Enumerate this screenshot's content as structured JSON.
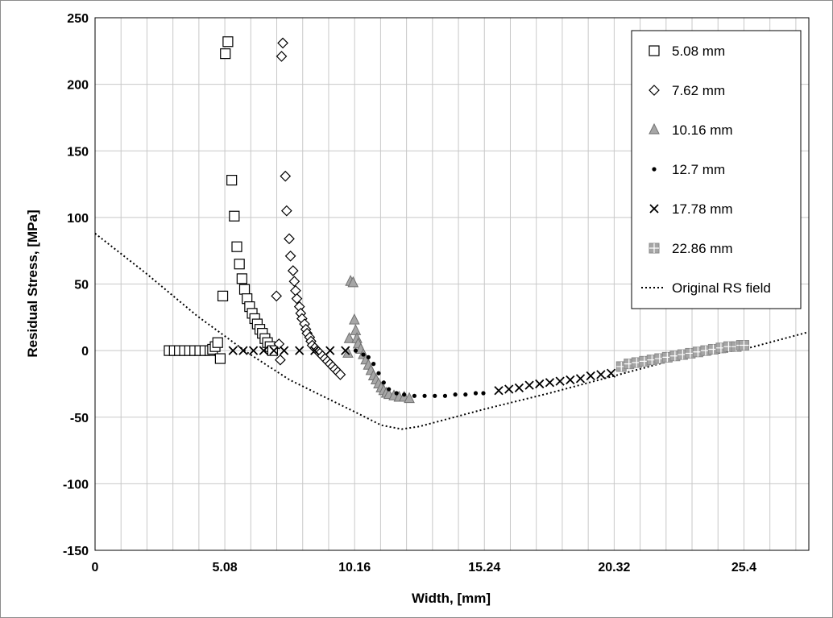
{
  "chart_data": {
    "type": "scatter",
    "xlabel": "Width, [mm]",
    "ylabel": "Residual Stress, [MPa]",
    "xlim": [
      0,
      27.94
    ],
    "ylim": [
      -150,
      250
    ],
    "x_ticks": [
      0,
      5.08,
      10.16,
      15.24,
      20.32,
      25.4
    ],
    "x_tick_labels": [
      "0",
      "5.08",
      "10.16",
      "15.24",
      "20.32",
      "25.4"
    ],
    "y_ticks": [
      250,
      200,
      150,
      100,
      50,
      0,
      -50,
      -100,
      -150
    ],
    "y_tick_labels": [
      "250",
      "200",
      "150",
      "100",
      "50",
      "0",
      "-50",
      "-100",
      "-150"
    ],
    "grid": true,
    "legend_position": "top-right",
    "series": [
      {
        "name": "5.08 mm",
        "marker": "square-open",
        "points": [
          [
            2.9,
            0
          ],
          [
            3.1,
            0
          ],
          [
            3.3,
            0
          ],
          [
            3.5,
            0
          ],
          [
            3.7,
            0
          ],
          [
            3.9,
            0
          ],
          [
            4.1,
            0
          ],
          [
            4.3,
            0
          ],
          [
            4.5,
            0
          ],
          [
            4.6,
            1
          ],
          [
            4.7,
            3
          ],
          [
            4.8,
            6
          ],
          [
            4.9,
            -6
          ],
          [
            5.0,
            41
          ],
          [
            5.1,
            223
          ],
          [
            5.2,
            232
          ],
          [
            5.35,
            128
          ],
          [
            5.45,
            101
          ],
          [
            5.55,
            78
          ],
          [
            5.65,
            65
          ],
          [
            5.75,
            54
          ],
          [
            5.85,
            46
          ],
          [
            5.95,
            39
          ],
          [
            6.05,
            33
          ],
          [
            6.15,
            28
          ],
          [
            6.25,
            24
          ],
          [
            6.35,
            20
          ],
          [
            6.45,
            16
          ],
          [
            6.55,
            13
          ],
          [
            6.65,
            9
          ],
          [
            6.75,
            6
          ],
          [
            6.85,
            3
          ],
          [
            6.95,
            0
          ]
        ]
      },
      {
        "name": "7.62 mm",
        "marker": "diamond-open",
        "points": [
          [
            7.1,
            41
          ],
          [
            7.2,
            5
          ],
          [
            7.25,
            -7
          ],
          [
            7.3,
            221
          ],
          [
            7.35,
            231
          ],
          [
            7.45,
            131
          ],
          [
            7.5,
            105
          ],
          [
            7.6,
            84
          ],
          [
            7.65,
            71
          ],
          [
            7.75,
            60
          ],
          [
            7.8,
            52
          ],
          [
            7.85,
            45
          ],
          [
            7.9,
            39
          ],
          [
            8.0,
            33
          ],
          [
            8.05,
            28
          ],
          [
            8.1,
            24
          ],
          [
            8.2,
            20
          ],
          [
            8.25,
            16
          ],
          [
            8.3,
            13
          ],
          [
            8.4,
            10
          ],
          [
            8.45,
            7
          ],
          [
            8.5,
            4
          ],
          [
            8.6,
            2
          ],
          [
            8.7,
            0
          ],
          [
            8.8,
            -2
          ],
          [
            8.9,
            -4
          ],
          [
            9.0,
            -6
          ],
          [
            9.1,
            -8
          ],
          [
            9.2,
            -10
          ],
          [
            9.3,
            -12
          ],
          [
            9.4,
            -14
          ],
          [
            9.5,
            -16
          ],
          [
            9.6,
            -18
          ]
        ]
      },
      {
        "name": "10.16 mm",
        "marker": "triangle-gray",
        "points": [
          [
            9.9,
            -2
          ],
          [
            9.95,
            9
          ],
          [
            10.0,
            52
          ],
          [
            10.1,
            51
          ],
          [
            10.15,
            23
          ],
          [
            10.2,
            15
          ],
          [
            10.25,
            9
          ],
          [
            10.3,
            5
          ],
          [
            10.4,
            1
          ],
          [
            10.5,
            -3
          ],
          [
            10.6,
            -7
          ],
          [
            10.7,
            -11
          ],
          [
            10.8,
            -15
          ],
          [
            10.9,
            -19
          ],
          [
            11.0,
            -22
          ],
          [
            11.1,
            -25
          ],
          [
            11.2,
            -28
          ],
          [
            11.3,
            -30
          ],
          [
            11.4,
            -32
          ],
          [
            11.5,
            -33
          ],
          [
            11.7,
            -34
          ],
          [
            11.9,
            -35
          ],
          [
            12.1,
            -35
          ],
          [
            12.3,
            -36
          ]
        ]
      },
      {
        "name": "12.7 mm",
        "marker": "dot",
        "points": [
          [
            10.2,
            0
          ],
          [
            10.5,
            -3
          ],
          [
            10.7,
            -5
          ],
          [
            10.9,
            -10
          ],
          [
            11.1,
            -17
          ],
          [
            11.3,
            -24
          ],
          [
            11.5,
            -29
          ],
          [
            11.8,
            -32
          ],
          [
            12.1,
            -33
          ],
          [
            12.5,
            -34
          ],
          [
            12.9,
            -34
          ],
          [
            13.3,
            -34
          ],
          [
            13.7,
            -34
          ],
          [
            14.1,
            -33
          ],
          [
            14.5,
            -33
          ],
          [
            14.9,
            -32
          ],
          [
            15.2,
            -32
          ]
        ]
      },
      {
        "name": "17.78 mm",
        "marker": "x",
        "points": [
          [
            5.4,
            0
          ],
          [
            5.8,
            0
          ],
          [
            6.2,
            0
          ],
          [
            6.6,
            0
          ],
          [
            7.0,
            0
          ],
          [
            7.4,
            0
          ],
          [
            8.0,
            0
          ],
          [
            8.6,
            0
          ],
          [
            9.2,
            0
          ],
          [
            9.8,
            0
          ],
          [
            15.8,
            -30
          ],
          [
            16.2,
            -29
          ],
          [
            16.6,
            -28
          ],
          [
            17.0,
            -26
          ],
          [
            17.4,
            -25
          ],
          [
            17.8,
            -24
          ],
          [
            18.2,
            -23
          ],
          [
            18.6,
            -22
          ],
          [
            19.0,
            -21
          ],
          [
            19.4,
            -19
          ],
          [
            19.8,
            -18
          ],
          [
            20.2,
            -17
          ]
        ]
      },
      {
        "name": "22.86 mm",
        "marker": "square-gray",
        "points": [
          [
            20.6,
            -12
          ],
          [
            20.9,
            -10
          ],
          [
            21.2,
            -9
          ],
          [
            21.5,
            -8
          ],
          [
            21.8,
            -7
          ],
          [
            22.1,
            -6
          ],
          [
            22.4,
            -5
          ],
          [
            22.7,
            -4
          ],
          [
            23.0,
            -3
          ],
          [
            23.3,
            -2
          ],
          [
            23.6,
            -1
          ],
          [
            23.9,
            0
          ],
          [
            24.2,
            1
          ],
          [
            24.5,
            2
          ],
          [
            24.8,
            3
          ],
          [
            25.1,
            3
          ],
          [
            25.3,
            4
          ],
          [
            25.4,
            4
          ]
        ]
      },
      {
        "name": "Original RS field",
        "style": "dotted-line",
        "points": [
          [
            0,
            88
          ],
          [
            2,
            58
          ],
          [
            4,
            26
          ],
          [
            6,
            -2
          ],
          [
            7.62,
            -22
          ],
          [
            10.16,
            -46
          ],
          [
            11.2,
            -56
          ],
          [
            12,
            -59
          ],
          [
            12.7,
            -57
          ],
          [
            15.24,
            -44
          ],
          [
            17.78,
            -32
          ],
          [
            20.32,
            -19
          ],
          [
            22.86,
            -6
          ],
          [
            25.4,
            1
          ],
          [
            27.94,
            14
          ]
        ]
      }
    ]
  }
}
